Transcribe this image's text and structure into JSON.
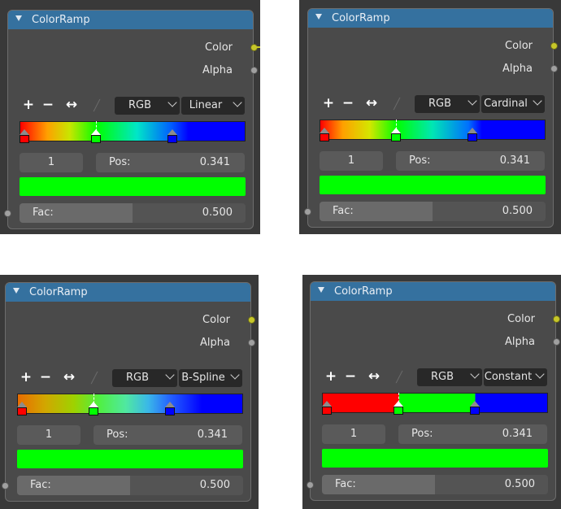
{
  "nodes": [
    {
      "title": "ColorRamp",
      "outputs": {
        "color": "Color",
        "alpha": "Alpha"
      },
      "tools": {
        "add": "+",
        "remove": "−",
        "flip": "↔",
        "eyedropper": "eyedropper-icon"
      },
      "color_mode": "RGB",
      "interpolation": "Linear",
      "ramp": {
        "gradient": "linear-gradient(to right,#ff0000 0%,#ffa000 12%,#c8e600 22%,#00ff00 34.1%,#00e6c8 52%,#0060ff 67%,#0000ff 75%,#0000ff 100%)",
        "stops": [
          {
            "color": "#ff0000",
            "pos": 0.0,
            "active": false
          },
          {
            "color": "#00ff00",
            "pos": 0.341,
            "active": true
          },
          {
            "color": "#0000ff",
            "pos": 0.68,
            "active": false
          }
        ]
      },
      "index": "1",
      "pos_label": "Pos:",
      "pos_value": "0.341",
      "selected_color": "#00ff00",
      "input": {
        "label": "Fac:",
        "value": "0.500",
        "fraction": 0.5
      }
    },
    {
      "title": "ColorRamp",
      "outputs": {
        "color": "Color",
        "alpha": "Alpha"
      },
      "tools": {
        "add": "+",
        "remove": "−",
        "flip": "↔",
        "eyedropper": "eyedropper-icon"
      },
      "color_mode": "RGB",
      "interpolation": "Cardinal",
      "ramp": {
        "gradient": "linear-gradient(to right,#ff0000 0%,#ffa000 10%,#d4e600 22%,#00ff00 34.1%,#00e6b4 50%,#0070ff 66%,#0000ff 72%,#0000ff 100%)",
        "stops": [
          {
            "color": "#ff0000",
            "pos": 0.0,
            "active": false
          },
          {
            "color": "#00ff00",
            "pos": 0.341,
            "active": true
          },
          {
            "color": "#0000ff",
            "pos": 0.68,
            "active": false
          }
        ]
      },
      "index": "1",
      "pos_label": "Pos:",
      "pos_value": "0.341",
      "selected_color": "#00ff00",
      "input": {
        "label": "Fac:",
        "value": "0.500",
        "fraction": 0.5
      }
    },
    {
      "title": "ColorRamp",
      "outputs": {
        "color": "Color",
        "alpha": "Alpha"
      },
      "tools": {
        "add": "+",
        "remove": "−",
        "flip": "↔",
        "eyedropper": "eyedropper-icon"
      },
      "color_mode": "RGB",
      "interpolation": "B-Spline",
      "ramp": {
        "gradient": "linear-gradient(to right,#e86c00 0%,#d2a600 12%,#9ed200 25%,#50f040 36%,#50e8a0 48%,#3ab8e8 58%,#2460ff 68%,#0000ff 82%,#0000ff 100%)",
        "stops": [
          {
            "color": "#ff0000",
            "pos": 0.0,
            "active": false
          },
          {
            "color": "#00ff00",
            "pos": 0.341,
            "active": true
          },
          {
            "color": "#0000ff",
            "pos": 0.68,
            "active": false
          }
        ]
      },
      "index": "1",
      "pos_label": "Pos:",
      "pos_value": "0.341",
      "selected_color": "#00ff00",
      "input": {
        "label": "Fac:",
        "value": "0.500",
        "fraction": 0.5
      }
    },
    {
      "title": "ColorRamp",
      "outputs": {
        "color": "Color",
        "alpha": "Alpha"
      },
      "tools": {
        "add": "+",
        "remove": "−",
        "flip": "↔",
        "eyedropper": "eyedropper-icon"
      },
      "color_mode": "RGB",
      "interpolation": "Constant",
      "ramp": {
        "gradient": "linear-gradient(to right,#ff0000 0%,#ff0000 34.1%,#00ff00 34.1%,#00ff00 68%,#0000ff 68%,#0000ff 100%)",
        "stops": [
          {
            "color": "#ff0000",
            "pos": 0.0,
            "active": false
          },
          {
            "color": "#00ff00",
            "pos": 0.341,
            "active": true
          },
          {
            "color": "#0000ff",
            "pos": 0.68,
            "active": false
          }
        ]
      },
      "index": "1",
      "pos_label": "Pos:",
      "pos_value": "0.341",
      "selected_color": "#00ff00",
      "input": {
        "label": "Fac:",
        "value": "0.500",
        "fraction": 0.5
      }
    }
  ],
  "colors": {
    "header": "#35719f",
    "node_bg": "#4a4a4a",
    "canvas": "#393939",
    "color_socket": "#c7c729",
    "value_socket": "#a0a0a0"
  }
}
